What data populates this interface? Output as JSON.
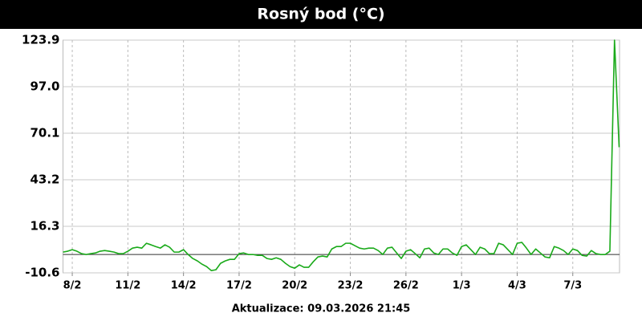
{
  "chart_data": {
    "type": "line",
    "title": "Rosný bod (°C)",
    "footer": "Aktualizace: 09.03.2026 21:45",
    "categories": [
      null,
      null,
      "8/2",
      null,
      null,
      null,
      null,
      null,
      null,
      null,
      null,
      null,
      null,
      null,
      "11/2",
      null,
      null,
      null,
      null,
      null,
      null,
      null,
      null,
      null,
      null,
      null,
      "14/2",
      null,
      null,
      null,
      null,
      null,
      null,
      null,
      null,
      null,
      null,
      null,
      "17/2",
      null,
      null,
      null,
      null,
      null,
      null,
      null,
      null,
      null,
      null,
      null,
      "20/2",
      null,
      null,
      null,
      null,
      null,
      null,
      null,
      null,
      null,
      null,
      null,
      "23/2",
      null,
      null,
      null,
      null,
      null,
      null,
      null,
      null,
      null,
      null,
      null,
      "26/2",
      null,
      null,
      null,
      null,
      null,
      null,
      null,
      null,
      null,
      null,
      null,
      "1/3",
      null,
      null,
      null,
      null,
      null,
      null,
      null,
      null,
      null,
      null,
      null,
      "4/3",
      null,
      null,
      null,
      null,
      null,
      null,
      null,
      null,
      null,
      null,
      null,
      "7/3",
      null,
      null,
      null,
      null,
      null,
      null,
      null,
      null,
      null,
      null
    ],
    "series": [
      {
        "color": "#1aaa1a",
        "values": [
          1.4,
          1.9,
          2.8,
          1.9,
          0.5,
          0,
          0.5,
          0.9,
          1.9,
          2.3,
          1.9,
          1.4,
          0.5,
          0.5,
          1.9,
          3.7,
          4.2,
          3.7,
          6.5,
          5.6,
          4.6,
          3.7,
          5.6,
          4.2,
          1.4,
          1.4,
          2.8,
          0,
          -2.3,
          -3.7,
          -5.6,
          -7,
          -9.3,
          -8.8,
          -5.1,
          -3.7,
          -2.8,
          -2.8,
          0.5,
          0.9,
          0,
          0,
          -0.5,
          -0.5,
          -2.3,
          -2.8,
          -1.9,
          -2.8,
          -5.1,
          -7,
          -7.9,
          -6,
          -7.4,
          -7.4,
          -4.2,
          -1.4,
          -0.9,
          -1.4,
          3.2,
          4.6,
          4.6,
          6.5,
          6.5,
          5.1,
          3.7,
          3.2,
          3.7,
          3.7,
          2.3,
          0,
          3.7,
          4.2,
          0.9,
          -2.3,
          1.9,
          2.8,
          0.5,
          -1.9,
          3.2,
          3.7,
          0.9,
          0,
          3.2,
          3.2,
          0.9,
          -0.5,
          4.6,
          5.6,
          2.8,
          0,
          4.2,
          3.2,
          0.5,
          0.5,
          6.5,
          5.6,
          2.8,
          0,
          6.5,
          7,
          3.7,
          0,
          3.2,
          0.9,
          -1.4,
          -1.9,
          4.6,
          3.7,
          2.3,
          0,
          3.2,
          2.3,
          -0.5,
          -0.9,
          2.3,
          0.5,
          0,
          0,
          1.9,
          123.9,
          62
        ]
      }
    ],
    "ylim": [
      -10.6,
      123.9
    ],
    "yticks": [
      -10.6,
      16.3,
      43.2,
      70.1,
      {
        "value": 97,
        "label": "97.0"
      },
      123.9
    ],
    "grid": true
  }
}
